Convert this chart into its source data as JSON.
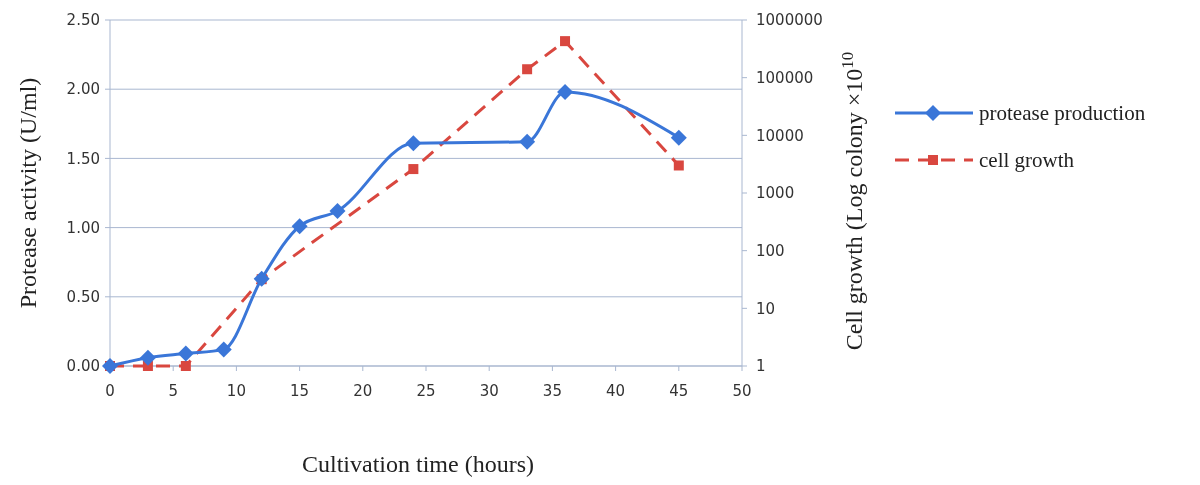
{
  "chart_data": {
    "type": "line",
    "xlabel": "Cultivation time (hours)",
    "ylabel": "Protease activity (U/ml)",
    "y2label": "Cell growth (Log colony ×10$^{10}$",
    "xlim": [
      0,
      50
    ],
    "xticks": [
      0,
      5,
      10,
      15,
      20,
      25,
      30,
      35,
      40,
      45,
      50
    ],
    "ylim": [
      0,
      2.5
    ],
    "yticks": [
      {
        "value": 0,
        "label": "0.00"
      },
      {
        "value": 0.5,
        "label": "0.50"
      },
      {
        "value": 1,
        "label": "1.00"
      },
      {
        "value": 1.5,
        "label": "1.50"
      },
      {
        "value": 2,
        "label": "2.00"
      },
      {
        "value": 2.5,
        "label": "2.50"
      }
    ],
    "y2lim": [
      1,
      1000000
    ],
    "y2ticks": [
      1,
      10,
      100,
      1000,
      10000,
      100000,
      1000000
    ],
    "log": "y2",
    "grid": "y",
    "legend": "right",
    "series": [
      {
        "name": "protease production",
        "color": "#3a76d8",
        "marker": "diamond",
        "line_style": "solid",
        "x": [
          0,
          3,
          6,
          9,
          12,
          15,
          18,
          24,
          33,
          36,
          45
        ],
        "values": [
          0,
          0.06,
          0.09,
          0.12,
          0.63,
          1.01,
          1.12,
          1.61,
          1.62,
          1.98,
          1.65
        ]
      },
      {
        "name": "cell growth",
        "color": "#d9473f",
        "marker": "square",
        "line_style": "dashed",
        "axis": "y2",
        "x": [
          0,
          3,
          6,
          12,
          24,
          33,
          36,
          45
        ],
        "values": [
          1,
          1,
          1,
          32,
          2600,
          140000,
          430000,
          3000
        ]
      }
    ]
  }
}
